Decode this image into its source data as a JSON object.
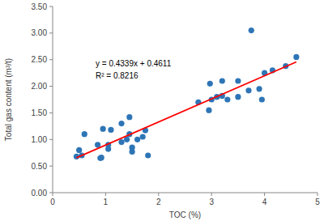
{
  "chart_data": {
    "type": "scatter",
    "x_label": "TOC (%)",
    "y_label": "Total gas content (m³/t)",
    "x": [
      0.45,
      0.5,
      0.55,
      0.6,
      0.85,
      0.9,
      0.92,
      0.95,
      1.05,
      1.05,
      1.1,
      1.3,
      1.3,
      1.4,
      1.45,
      1.45,
      1.5,
      1.5,
      1.6,
      1.7,
      1.75,
      1.8,
      2.75,
      2.95,
      2.97,
      3.0,
      3.1,
      3.2,
      3.2,
      3.3,
      3.5,
      3.5,
      3.7,
      3.75,
      3.9,
      3.95,
      4.0,
      4.15,
      4.4,
      4.6
    ],
    "values": [
      0.68,
      0.8,
      0.7,
      1.1,
      0.9,
      0.65,
      0.66,
      1.2,
      0.82,
      0.9,
      1.18,
      0.95,
      1.3,
      1.0,
      1.42,
      1.1,
      0.85,
      0.77,
      1.0,
      1.05,
      1.17,
      0.7,
      1.7,
      1.55,
      2.05,
      1.75,
      1.8,
      1.82,
      2.1,
      1.75,
      1.8,
      2.1,
      1.92,
      3.05,
      1.95,
      1.75,
      2.25,
      2.3,
      2.38,
      2.55
    ],
    "color": "#2e75b6",
    "marker": "circle",
    "trendline": {
      "x": [
        0.45,
        4.6
      ],
      "values": [
        0.6564,
        2.457
      ],
      "color": "#ff0000",
      "line_style": "solid"
    },
    "annotations": [
      "y = 0.4339x + 0.4611",
      "R² = 0.8216"
    ],
    "xlim": [
      0,
      5
    ],
    "xticks": [
      0,
      1,
      2,
      3,
      4,
      5
    ],
    "ylim": [
      0,
      3.5
    ],
    "yticks": [
      {
        "value": 0,
        "label": "0.00"
      },
      {
        "value": 0.5,
        "label": "0.50"
      },
      {
        "value": 1,
        "label": "1.00"
      },
      {
        "value": 1.5,
        "label": "1.50"
      },
      {
        "value": 2,
        "label": "2.00"
      },
      {
        "value": 2.5,
        "label": "2.50"
      },
      {
        "value": 3,
        "label": "3.00"
      },
      {
        "value": 3.5,
        "label": "3.50"
      }
    ],
    "grid": false
  }
}
